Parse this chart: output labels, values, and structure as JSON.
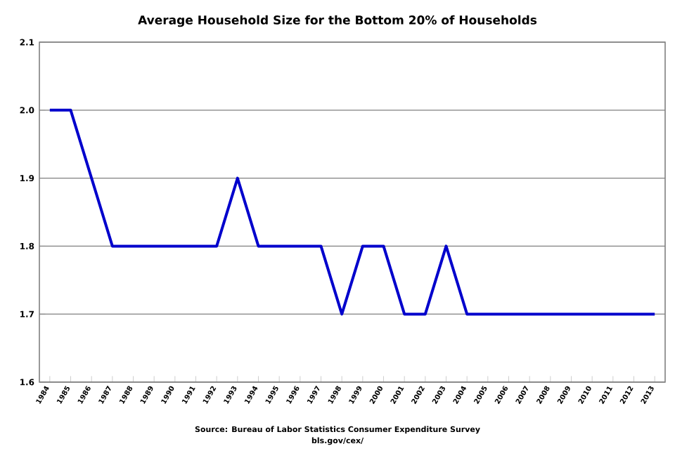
{
  "chart_data": {
    "type": "line",
    "title": "Average Household Size for the Bottom 20% of Households",
    "categories": [
      "1984",
      "1985",
      "1986",
      "1987",
      "1988",
      "1989",
      "1990",
      "1991",
      "1992",
      "1993",
      "1994",
      "1995",
      "1996",
      "1997",
      "1998",
      "1999",
      "2000",
      "2001",
      "2002",
      "2003",
      "2004",
      "2005",
      "2006",
      "2007",
      "2008",
      "2009",
      "2010",
      "2011",
      "2012",
      "2013"
    ],
    "series": [
      {
        "color": "#0000cc",
        "values": [
          2.0,
          2.0,
          1.9,
          1.8,
          1.8,
          1.8,
          1.8,
          1.8,
          1.8,
          1.9,
          1.8,
          1.8,
          1.8,
          1.8,
          1.7,
          1.8,
          1.8,
          1.7,
          1.7,
          1.8,
          1.7,
          1.7,
          1.7,
          1.7,
          1.7,
          1.7,
          1.7,
          1.7,
          1.7,
          1.7
        ]
      }
    ],
    "ylim": [
      1.6,
      2.1
    ],
    "yticks": [
      {
        "value": 1.6,
        "label": "1.6"
      },
      {
        "value": 1.7,
        "label": "1.7"
      },
      {
        "value": 1.8,
        "label": "1.8"
      },
      {
        "value": 1.9,
        "label": "1.9"
      },
      {
        "value": 2.0,
        "label": "2.0"
      },
      {
        "value": 2.1,
        "label": "2.1"
      }
    ],
    "grid": "y",
    "marker": "none",
    "line_style": "solid",
    "annotations": [
      "Source: Bureau of Labor Statistics Consumer Expenditure Survey",
      "bls.gov/cex/"
    ]
  }
}
